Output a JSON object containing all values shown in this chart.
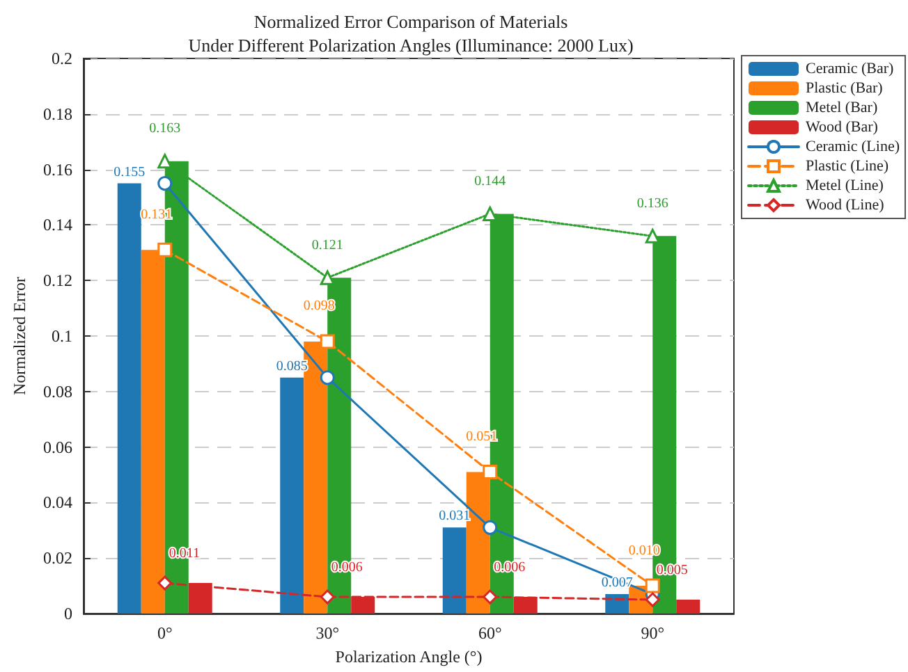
{
  "chart_data": {
    "type": "bar",
    "title": "Normalized Error Comparison of Materials",
    "subtitle": "Under Different Polarization Angles (Illuminance: 2000 Lux)",
    "xlabel": "Polarization Angle (°)",
    "ylabel": "Normalized Error",
    "categories": [
      "0°",
      "30°",
      "60°",
      "90°"
    ],
    "series": [
      {
        "name": "Ceramic (Bar)",
        "type": "bar",
        "color": "#1f77b4",
        "values": [
          0.155,
          0.085,
          0.031,
          0.007
        ]
      },
      {
        "name": "Plastic (Bar)",
        "type": "bar",
        "color": "#ff7f0e",
        "values": [
          0.131,
          0.098,
          0.051,
          0.01
        ]
      },
      {
        "name": "Metel (Bar)",
        "type": "bar",
        "color": "#2ca02c",
        "values": [
          0.163,
          0.121,
          0.144,
          0.136
        ]
      },
      {
        "name": "Wood (Bar)",
        "type": "bar",
        "color": "#d62728",
        "values": [
          0.011,
          0.006,
          0.006,
          0.005
        ]
      },
      {
        "name": "Ceramic (Line)",
        "type": "line",
        "color": "#1f77b4",
        "marker": "circle",
        "line_style": "solid",
        "values": [
          0.155,
          0.085,
          0.031,
          0.007
        ],
        "value_labels": [
          "0.155",
          "0.085",
          "0.031",
          "0.007"
        ]
      },
      {
        "name": "Plastic (Line)",
        "type": "line",
        "color": "#ff7f0e",
        "marker": "square",
        "line_style": "dashed",
        "values": [
          0.131,
          0.098,
          0.051,
          0.01
        ],
        "value_labels": [
          "0.131",
          "0.098",
          "0.051",
          "0.010"
        ]
      },
      {
        "name": "Metel (Line)",
        "type": "line",
        "color": "#2ca02c",
        "marker": "triangle",
        "line_style": "dotted",
        "values": [
          0.163,
          0.121,
          0.144,
          0.136
        ],
        "value_labels": [
          "0.163",
          "0.121",
          "0.144",
          "0.136"
        ]
      },
      {
        "name": "Wood (Line)",
        "type": "line",
        "color": "#d62728",
        "marker": "diamond",
        "line_style": "dashed",
        "values": [
          0.011,
          0.006,
          0.006,
          0.005
        ],
        "value_labels": [
          "0.011",
          "0.006",
          "0.006",
          "0.005"
        ]
      }
    ],
    "ylim": [
      0,
      0.2
    ],
    "yticks": [
      0,
      0.02,
      0.04,
      0.06,
      0.08,
      0.1,
      0.12,
      0.14,
      0.16,
      0.18,
      0.2
    ],
    "grid": "y",
    "legend": "right"
  }
}
